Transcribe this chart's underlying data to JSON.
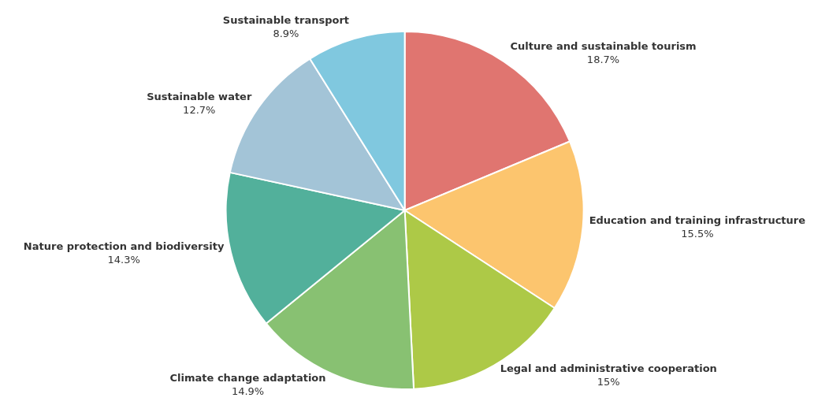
{
  "chart_data": {
    "type": "pie",
    "categories": [
      "Culture and sustainable tourism",
      "Education and training infrastructure",
      "Legal and administrative cooperation",
      "Climate change adaptation",
      "Nature protection and biodiversity",
      "Sustainable water",
      "Sustainable transport"
    ],
    "values": [
      18.7,
      15.5,
      15,
      14.9,
      14.3,
      12.7,
      8.9
    ],
    "colors": [
      "#e07570",
      "#fcc56e",
      "#adc947",
      "#88c172",
      "#52b09b",
      "#a3c4d7",
      "#80c8df"
    ],
    "value_labels": [
      "18.7%",
      "15.5%",
      "15%",
      "14.9%",
      "14.3%",
      "12.7%",
      "8.9%"
    ],
    "legend": false
  }
}
